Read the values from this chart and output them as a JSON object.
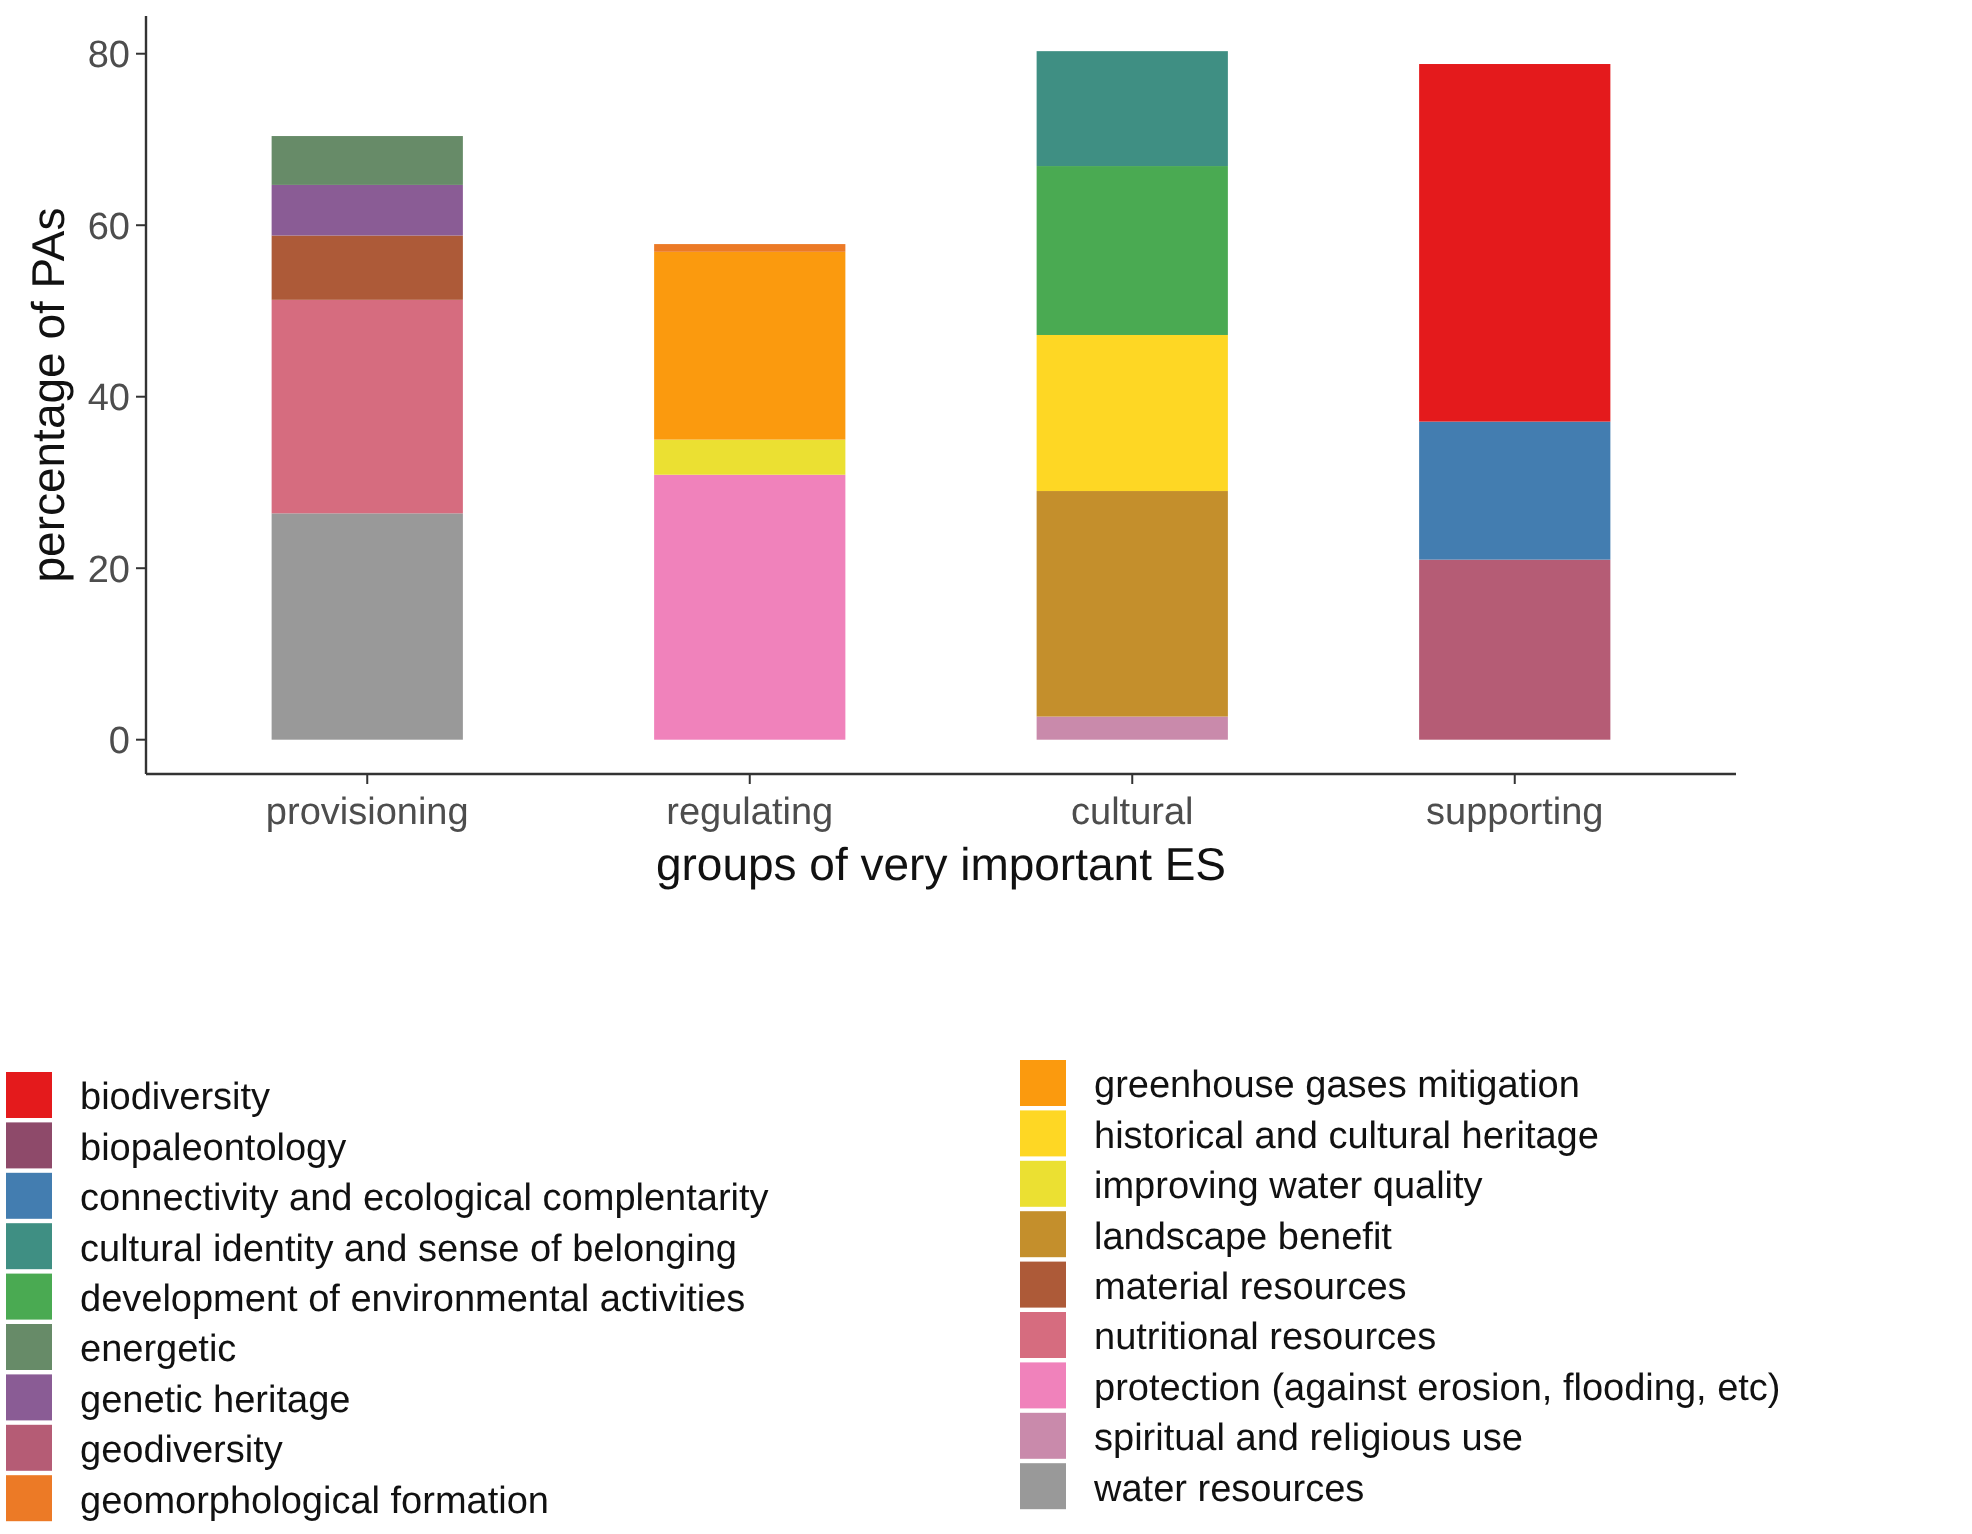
{
  "chart_data": {
    "type": "bar",
    "stacked": true,
    "xlabel": "groups of very important ES",
    "ylabel": "percentage of PAs",
    "categories": [
      "provisioning",
      "regulating",
      "cultural",
      "supporting"
    ],
    "ylim": [
      -4,
      84.4
    ],
    "yticks": [
      0,
      20,
      40,
      60,
      80
    ],
    "grid": false,
    "legend": "bottom",
    "series": [
      {
        "name": "water resources",
        "color": "#999999",
        "values": [
          26.4,
          null,
          null,
          null
        ]
      },
      {
        "name": "spiritual and religious use",
        "color": "#c98aab",
        "values": [
          null,
          null,
          2.7,
          null
        ]
      },
      {
        "name": "protection (against erosion, flooding, etc)",
        "color": "#f082bb",
        "values": [
          null,
          30.9,
          null,
          null
        ]
      },
      {
        "name": "nutritional resources",
        "color": "#d66c7f",
        "values": [
          24.9,
          null,
          null,
          null
        ]
      },
      {
        "name": "material resources",
        "color": "#ad5a38",
        "values": [
          7.5,
          null,
          null,
          null
        ]
      },
      {
        "name": "landscape benefit",
        "color": "#c48f2c",
        "values": [
          null,
          null,
          26.3,
          null
        ]
      },
      {
        "name": "improving water quality",
        "color": "#ebe032",
        "values": [
          null,
          4.1,
          null,
          null
        ]
      },
      {
        "name": "historical and cultural heritage",
        "color": "#fed724",
        "values": [
          null,
          null,
          18.2,
          null
        ]
      },
      {
        "name": "greenhouse gases mitigation",
        "color": "#fb9a0e",
        "values": [
          null,
          21.9,
          null,
          null
        ]
      },
      {
        "name": "geomorphological formation",
        "color": "#ec7a26",
        "values": [
          null,
          0.9,
          null,
          null
        ]
      },
      {
        "name": "geodiversity",
        "color": "#b55c75",
        "values": [
          null,
          null,
          null,
          21.0
        ]
      },
      {
        "name": "genetic heritage",
        "color": "#8a5c95",
        "values": [
          5.9,
          null,
          null,
          null
        ]
      },
      {
        "name": "energetic",
        "color": "#678b68",
        "values": [
          5.7,
          null,
          null,
          null
        ]
      },
      {
        "name": "development of environmental activities",
        "color": "#4aaa52",
        "values": [
          null,
          null,
          19.7,
          null
        ]
      },
      {
        "name": "cultural identity and sense of belonging",
        "color": "#3f8f83",
        "values": [
          null,
          null,
          13.4,
          null
        ]
      },
      {
        "name": "connectivity and ecological complentarity",
        "color": "#437db0",
        "values": [
          null,
          null,
          null,
          16.1
        ]
      },
      {
        "name": "biopaleontology",
        "color": "#8e4a6a",
        "values": [
          null,
          null,
          null,
          null
        ]
      },
      {
        "name": "biodiversity",
        "color": "#e41a1c",
        "values": [
          null,
          null,
          null,
          41.7
        ]
      }
    ]
  }
}
